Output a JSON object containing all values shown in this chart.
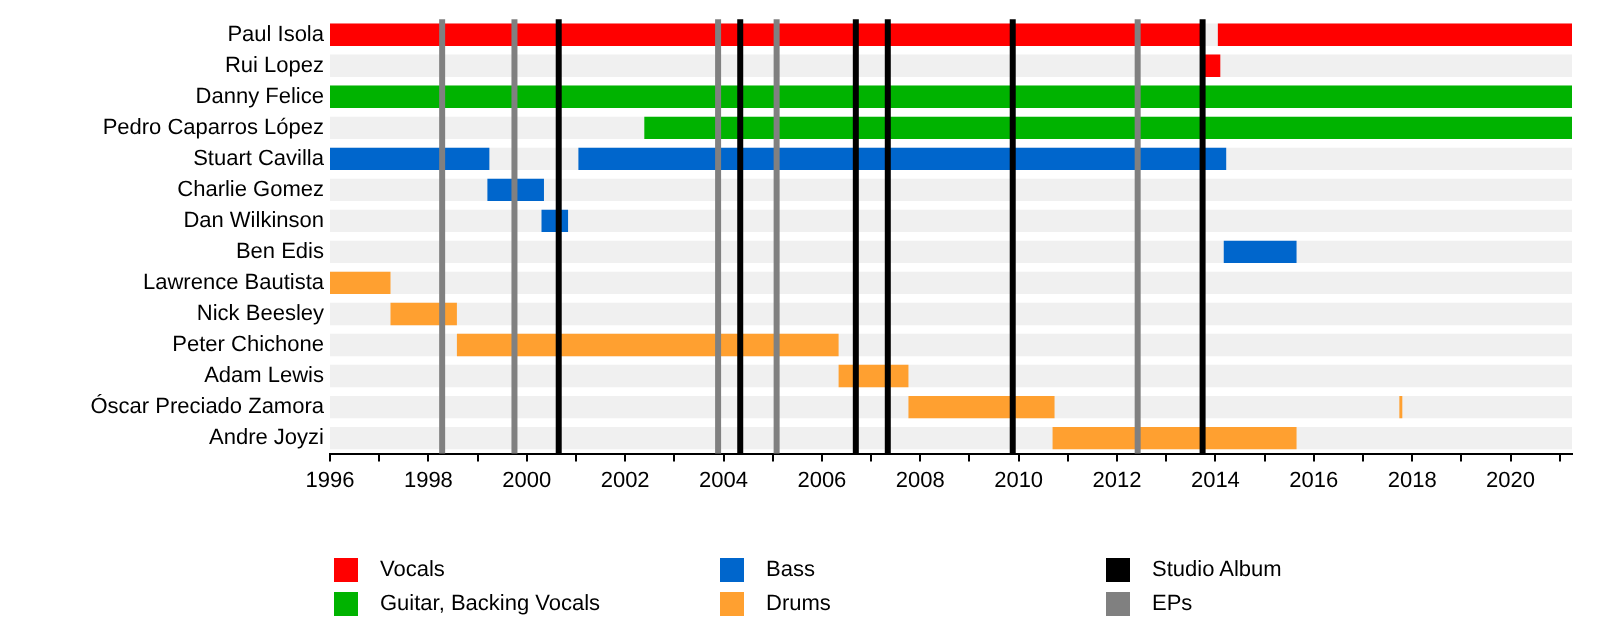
{
  "chart_data": {
    "type": "bar",
    "orientation": "horizontal",
    "categories": [
      "Paul Isola",
      "Rui Lopez",
      "Danny Felice",
      "Pedro Caparros López",
      "Stuart Cavilla",
      "Charlie Gomez",
      "Dan Wilkinson",
      "Ben Edis",
      "Lawrence Bautista",
      "Nick Beesley",
      "Peter Chichone",
      "Adam Lewis",
      "Óscar Preciado Zamora",
      "Andre Joyzi"
    ],
    "series": [
      {
        "name": "Vocals",
        "color": "#ff0000",
        "base": [
          1996,
          2013.74,
          null,
          null,
          null,
          null,
          null,
          null,
          null,
          null,
          null,
          null,
          null,
          null
        ],
        "values": [
          17.74,
          0.36,
          null,
          null,
          null,
          null,
          null,
          null,
          null,
          null,
          null,
          null,
          null,
          null
        ]
      },
      {
        "color": "#ff0000",
        "base": [
          2014.05,
          null,
          null,
          null,
          null,
          null,
          null,
          null,
          null,
          null,
          null,
          null,
          null,
          null
        ],
        "values": [
          7.2,
          null,
          null,
          null,
          null,
          null,
          null,
          null,
          null,
          null,
          null,
          null,
          null,
          null
        ]
      },
      {
        "name": "Guitar, Backing Vocals",
        "color": "#00b300",
        "base": [
          null,
          null,
          1996,
          2002.39,
          null,
          null,
          null,
          null,
          null,
          null,
          null,
          null,
          null,
          null
        ],
        "values": [
          null,
          null,
          25.25,
          18.86,
          null,
          null,
          null,
          null,
          null,
          null,
          null,
          null,
          null,
          null
        ]
      },
      {
        "name": "Bass",
        "color": "#0066cc",
        "base": [
          null,
          null,
          null,
          null,
          1996,
          1999.2,
          2000.3,
          2014.17,
          null,
          null,
          null,
          null,
          null,
          null
        ],
        "values": [
          null,
          null,
          null,
          null,
          3.24,
          1.15,
          0.54,
          1.48,
          null,
          null,
          null,
          null,
          null,
          null
        ]
      },
      {
        "color": "#0066cc",
        "base": [
          null,
          null,
          null,
          null,
          2001.05,
          null,
          null,
          null,
          null,
          null,
          null,
          null,
          null,
          null
        ],
        "values": [
          null,
          null,
          null,
          null,
          13.17,
          null,
          null,
          null,
          null,
          null,
          null,
          null,
          null,
          null
        ]
      },
      {
        "name": "Drums",
        "color": "#ffa030",
        "base": [
          null,
          null,
          null,
          null,
          null,
          null,
          null,
          null,
          1996,
          1997.23,
          1998.58,
          2006.34,
          2007.76,
          2010.69
        ],
        "values": [
          null,
          null,
          null,
          null,
          null,
          null,
          null,
          null,
          1.23,
          1.35,
          7.76,
          1.42,
          2.97,
          4.96
        ]
      },
      {
        "color": "#ffa030",
        "base": [
          null,
          null,
          null,
          null,
          null,
          null,
          null,
          null,
          null,
          null,
          null,
          null,
          2017.74,
          null
        ],
        "values": [
          null,
          null,
          null,
          null,
          null,
          null,
          null,
          null,
          null,
          null,
          null,
          null,
          0.06,
          null
        ]
      }
    ],
    "xlim": [
      1996,
      2021.25
    ],
    "xticks": [
      1996,
      {
        "value": 1997,
        "label": null
      },
      1998,
      {
        "value": 1999,
        "label": null
      },
      2000,
      {
        "value": 2001,
        "label": null
      },
      2002,
      {
        "value": 2003,
        "label": null
      },
      2004,
      {
        "value": 2005,
        "label": null
      },
      2006,
      {
        "value": 2007,
        "label": null
      },
      2008,
      {
        "value": 2009,
        "label": null
      },
      2010,
      {
        "value": 2011,
        "label": null
      },
      2012,
      {
        "value": 2013,
        "label": null
      },
      2014,
      {
        "value": 2015,
        "label": null
      },
      2016,
      {
        "value": 2017,
        "label": null
      },
      2018,
      {
        "value": 2019,
        "label": null
      },
      2020,
      {
        "value": 2021,
        "label": null
      }
    ],
    "ref_lines": [
      {
        "axis": "x",
        "value": 2000.65,
        "label": "Studio Album",
        "color": "#000000"
      },
      {
        "axis": "x",
        "value": 2004.34,
        "color": "#000000"
      },
      {
        "axis": "x",
        "value": 2006.69,
        "color": "#000000"
      },
      {
        "axis": "x",
        "value": 2007.34,
        "color": "#000000"
      },
      {
        "axis": "x",
        "value": 2009.88,
        "color": "#000000"
      },
      {
        "axis": "x",
        "value": 2013.74,
        "color": "#000000"
      },
      {
        "axis": "x",
        "value": 1998.28,
        "label": "EPs",
        "color": "#808080"
      },
      {
        "axis": "x",
        "value": 1999.75,
        "color": "#808080"
      },
      {
        "axis": "x",
        "value": 2003.89,
        "color": "#808080"
      },
      {
        "axis": "x",
        "value": 2005.08,
        "color": "#808080"
      },
      {
        "axis": "x",
        "value": 2012.42,
        "color": "#808080"
      }
    ],
    "legend": "bottom"
  }
}
